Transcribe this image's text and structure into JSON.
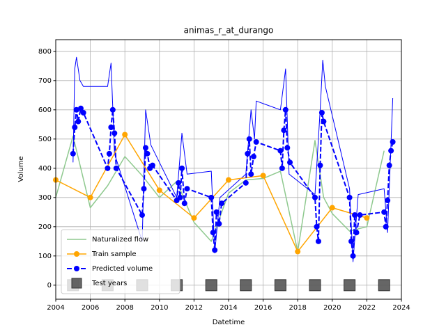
{
  "chart_data": {
    "type": "line",
    "title": "animas_r_at_durango",
    "xlabel": "Datetime",
    "ylabel": "Volume",
    "xlim": [
      2004,
      2024
    ],
    "xticks": [
      2004,
      2006,
      2008,
      2010,
      2012,
      2014,
      2016,
      2018,
      2020,
      2022,
      2024
    ],
    "ylim": [
      -48,
      840
    ],
    "yticks": [
      0,
      100,
      200,
      300,
      400,
      500,
      600,
      700,
      800
    ],
    "grid": true,
    "legend": "lower left",
    "series": [
      {
        "name": "Naturalized flow",
        "color": "#8fc98f",
        "linestyle": "solid",
        "marker": "none",
        "linewidth": 1.5,
        "x": [
          2004,
          2005,
          2006,
          2007,
          2008,
          2009,
          2010,
          2011,
          2012,
          2013,
          2014,
          2015,
          2016,
          2017,
          2018,
          2019,
          2019.5,
          2020,
          2021,
          2022,
          2023
        ],
        "values": [
          300,
          510,
          265,
          340,
          440,
          375,
          300,
          355,
          215,
          150,
          315,
          360,
          365,
          390,
          115,
          495,
          300,
          245,
          185,
          200,
          460
        ]
      },
      {
        "color": "#0000ff",
        "linestyle": "solid",
        "marker": "none",
        "linewidth": 1,
        "x": [
          2005.0,
          2005.1,
          2005.2,
          2005.4,
          2005.6,
          2007.0,
          2007.2,
          2007.4,
          2009.0,
          2009.2,
          2009.5,
          2011.0,
          2011.3,
          2011.6,
          2013.0,
          2013.2,
          2013.5,
          2015.0,
          2015.3,
          2015.5,
          2015.6,
          2017.0,
          2017.3,
          2017.5,
          2019.0,
          2019.3,
          2019.45,
          2019.6,
          2021.0,
          2021.2,
          2021.5,
          2023.0,
          2023.2,
          2023.5
        ],
        "values": [
          420,
          740,
          780,
          700,
          680,
          680,
          760,
          450,
          150,
          600,
          480,
          300,
          520,
          380,
          390,
          110,
          300,
          380,
          600,
          500,
          630,
          600,
          740,
          380,
          310,
          600,
          770,
          680,
          330,
          80,
          310,
          330,
          180,
          640
        ]
      },
      {
        "name": "Train sample",
        "color": "#ffa500",
        "linestyle": "solid",
        "marker": "circle",
        "linewidth": 1.5,
        "x": [
          2004,
          2006,
          2008,
          2010,
          2012,
          2014,
          2016,
          2018,
          2020,
          2022
        ],
        "values": [
          360,
          300,
          515,
          325,
          230,
          360,
          375,
          115,
          265,
          230
        ]
      },
      {
        "name": "Predicted volume",
        "color": "#0000ff",
        "linestyle": "dashed",
        "marker": "circle",
        "linewidth": 2,
        "x": [
          2005.0,
          2005.1,
          2005.2,
          2005.3,
          2005.45,
          2005.6,
          2007.0,
          2007.1,
          2007.2,
          2007.3,
          2007.4,
          2007.5,
          2009.0,
          2009.1,
          2009.2,
          2009.3,
          2009.45,
          2009.6,
          2011.0,
          2011.1,
          2011.2,
          2011.3,
          2011.45,
          2011.6,
          2013.0,
          2013.1,
          2013.2,
          2013.3,
          2013.45,
          2013.6,
          2015.0,
          2015.1,
          2015.2,
          2015.3,
          2015.45,
          2015.6,
          2017.0,
          2017.1,
          2017.2,
          2017.3,
          2017.4,
          2017.55,
          2019.0,
          2019.1,
          2019.2,
          2019.3,
          2019.4,
          2019.5,
          2021.0,
          2021.1,
          2021.2,
          2021.3,
          2021.4,
          2021.6,
          2023.0,
          2023.1,
          2023.2,
          2023.3,
          2023.4,
          2023.5
        ],
        "values": [
          450,
          540,
          600,
          560,
          605,
          590,
          400,
          450,
          540,
          600,
          520,
          400,
          240,
          330,
          470,
          450,
          400,
          410,
          290,
          350,
          300,
          400,
          280,
          330,
          300,
          180,
          120,
          250,
          210,
          280,
          350,
          450,
          500,
          380,
          440,
          490,
          460,
          400,
          530,
          600,
          470,
          420,
          300,
          200,
          150,
          410,
          590,
          560,
          300,
          150,
          100,
          240,
          180,
          240,
          250,
          200,
          290,
          410,
          460,
          490
        ]
      },
      {
        "name": "Test years",
        "color": "#555555",
        "linestyle": "none",
        "marker": "square",
        "linewidth": 0,
        "x": [
          2005,
          2007,
          2009,
          2011,
          2013,
          2015,
          2017,
          2019,
          2021,
          2023
        ],
        "values": [
          0,
          0,
          0,
          0,
          0,
          0,
          0,
          0,
          0,
          0
        ]
      }
    ]
  }
}
